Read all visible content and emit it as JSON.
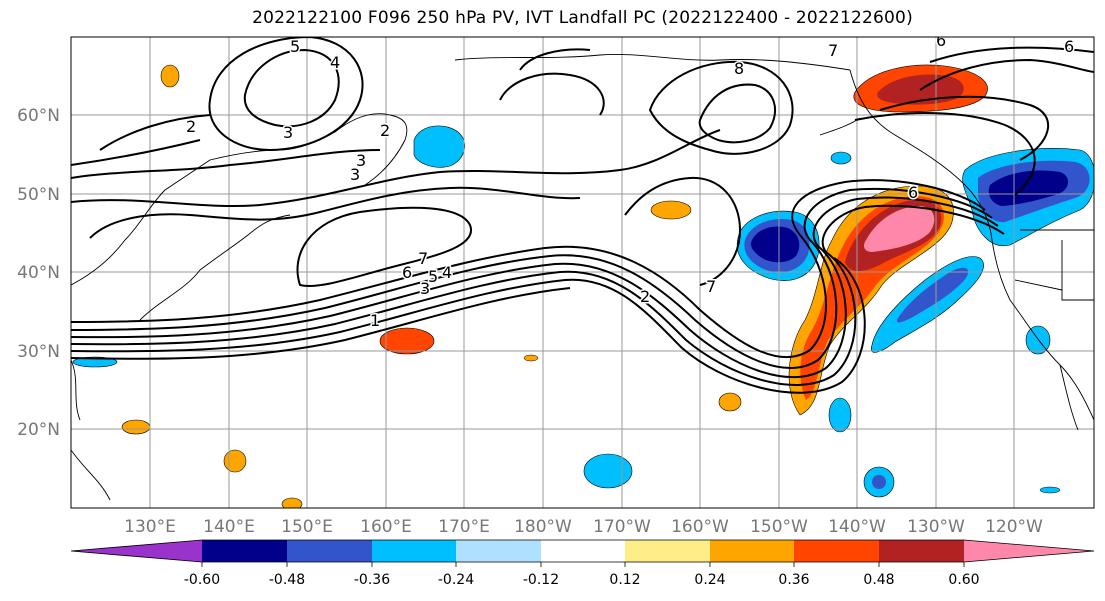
{
  "title": "2022122100 F096 250 hPa PV, IVT Landfall PC (2022122400 - 2022122600)",
  "lat_labels": [
    "60°N",
    "50°N",
    "40°N",
    "30°N",
    "20°N"
  ],
  "lon_labels": [
    "130°E",
    "140°E",
    "150°E",
    "160°E",
    "170°E",
    "180°W",
    "170°W",
    "160°W",
    "150°W",
    "140°W",
    "130°W",
    "120°W"
  ],
  "colorbar": {
    "colors": [
      "#9933cc",
      "#00008b",
      "#3355cc",
      "#00bfff",
      "#b0e0ff",
      "#ffffff",
      "#ffee88",
      "#ffa500",
      "#ff4500",
      "#b22222",
      "#ff88aa"
    ],
    "tick_labels": [
      "-0.60",
      "-0.48",
      "-0.36",
      "-0.24",
      "-0.12",
      "0.12",
      "0.24",
      "0.36",
      "0.48",
      "0.60"
    ]
  },
  "contour_labels": [
    "5",
    "4",
    "3",
    "2",
    "3",
    "2",
    "3",
    "8",
    "7",
    "7",
    "6",
    "5",
    "4",
    "3",
    "1",
    "2",
    "7",
    "6",
    "6",
    "6"
  ],
  "map": {
    "lon_range": [
      "120°E",
      "110°W"
    ],
    "lat_range": [
      "10°N",
      "70°N"
    ],
    "grid": true,
    "contour_field": "250 hPa PV",
    "shaded_field": "IVT Landfall PC",
    "graticule_color": "#999999"
  }
}
